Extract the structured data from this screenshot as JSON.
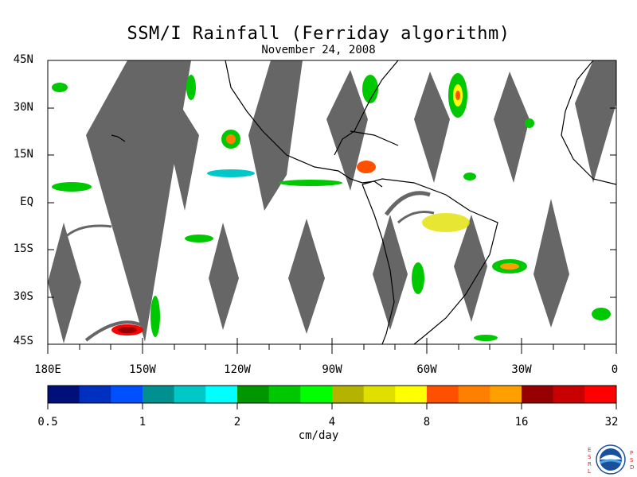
{
  "map": {
    "title": "SSM/I Rainfall (Ferriday algorithm)",
    "date": "November 24, 2008",
    "extent": {
      "lon": [
        -180,
        0
      ],
      "lat": [
        -45,
        45
      ]
    },
    "lat_labels": [
      "45N",
      "30N",
      "15N",
      "EQ",
      "15S",
      "30S",
      "45S"
    ],
    "lon_labels": [
      "180E",
      "150W",
      "120W",
      "90W",
      "60W",
      "30W",
      "0"
    ],
    "no_data_color": "#666666",
    "coastline_color": "#000000"
  },
  "colorbar": {
    "units": "cm/day",
    "tick_labels": [
      "0.5",
      "1",
      "2",
      "4",
      "8",
      "16",
      "32"
    ],
    "colors": [
      "#00107a",
      "#0030c0",
      "#0050ff",
      "#009090",
      "#00c8c8",
      "#00ffff",
      "#009600",
      "#00c800",
      "#00ff00",
      "#b4b400",
      "#e0e000",
      "#ffff00",
      "#ff5000",
      "#ff8000",
      "#ffa000",
      "#960000",
      "#c80000",
      "#ff0000"
    ]
  },
  "logo": {
    "name": "noaa-logo"
  }
}
